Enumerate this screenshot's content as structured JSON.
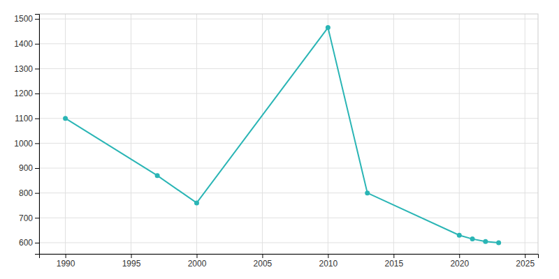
{
  "chart_data": {
    "type": "line",
    "x": [
      1990,
      1997,
      2000,
      2010,
      2013,
      2020,
      2021,
      2022,
      2023
    ],
    "values": [
      1100,
      870,
      760,
      1465,
      800,
      630,
      615,
      605,
      600
    ],
    "color": "#2ab5b5",
    "marker": "circle",
    "xlim": [
      1988,
      2026
    ],
    "ylim": [
      555,
      1520
    ],
    "xticks": [
      1990,
      1995,
      2000,
      2005,
      2010,
      2015,
      2020,
      2025
    ],
    "yticks": [
      600,
      700,
      800,
      900,
      1000,
      1100,
      1200,
      1300,
      1400,
      1500
    ],
    "grid": true
  }
}
